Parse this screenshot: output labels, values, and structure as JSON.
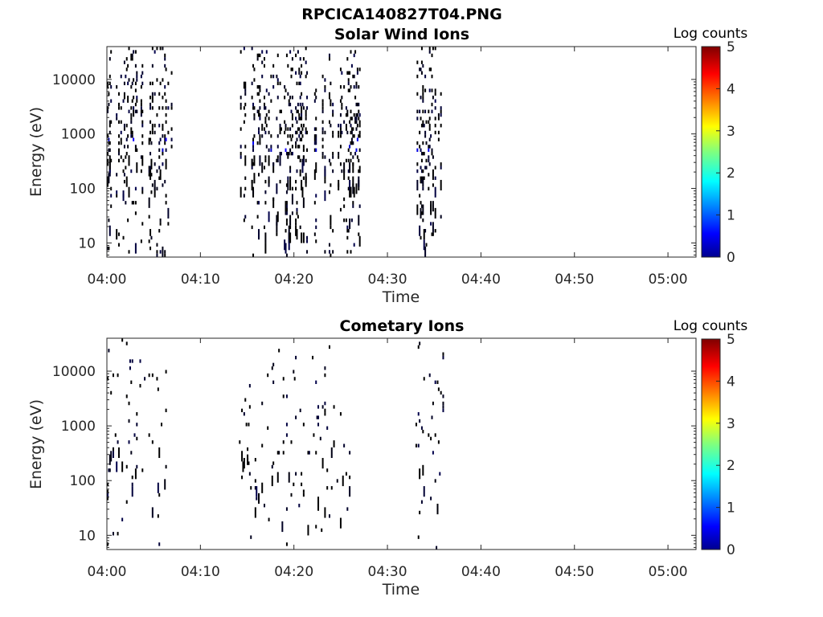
{
  "figure_title": "RPCICA140827T04.PNG",
  "chart_data": [
    {
      "type": "heatmap",
      "title": "Solar Wind Ions",
      "xlabel": "Time",
      "ylabel": "Energy (eV)",
      "xscale": "time",
      "yscale": "log",
      "xlim": [
        "04:00",
        "05:03"
      ],
      "ylim": [
        5.5,
        40000
      ],
      "xticks": [
        "04:00",
        "04:10",
        "04:20",
        "04:30",
        "04:40",
        "04:50",
        "05:00"
      ],
      "yticks": [
        10,
        100,
        1000,
        10000
      ],
      "ytick_labels": [
        "10",
        "100",
        "1000",
        "10000"
      ],
      "colorbar": {
        "title": "Log counts",
        "range": [
          0,
          5
        ],
        "ticks": [
          "0",
          "1",
          "2",
          "3",
          "4",
          "5"
        ],
        "colormap": "jet"
      },
      "grid": false,
      "data_intervals": [
        [
          "04:00",
          "04:07"
        ],
        [
          "04:14",
          "04:27"
        ],
        [
          "04:33",
          "04:36"
        ]
      ],
      "notes": "Sparse scattered counts, mostly 0-1 log counts (dark blue), with a few cells around 1.5-2 near 500-800 eV; columns of counts extend from ~10 eV to ~40000 eV within the data intervals."
    },
    {
      "type": "heatmap",
      "title": "Cometary Ions",
      "xlabel": "Time",
      "ylabel": "Energy (eV)",
      "xscale": "time",
      "yscale": "log",
      "xlim": [
        "04:00",
        "05:03"
      ],
      "ylim": [
        5.5,
        40000
      ],
      "xticks": [
        "04:00",
        "04:10",
        "04:20",
        "04:30",
        "04:40",
        "04:50",
        "05:00"
      ],
      "yticks": [
        10,
        100,
        1000,
        10000
      ],
      "ytick_labels": [
        "10",
        "100",
        "1000",
        "10000"
      ],
      "colorbar": {
        "title": "Log counts",
        "range": [
          0,
          5
        ],
        "ticks": [
          "0",
          "1",
          "2",
          "3",
          "4",
          "5"
        ],
        "colormap": "jet"
      },
      "grid": false,
      "data_intervals": [
        [
          "04:00",
          "04:07"
        ],
        [
          "04:14",
          "04:26"
        ],
        [
          "04:33",
          "04:36"
        ]
      ],
      "notes": "Very sparse counts, almost all at 0-1 log counts (dark blue)."
    }
  ]
}
